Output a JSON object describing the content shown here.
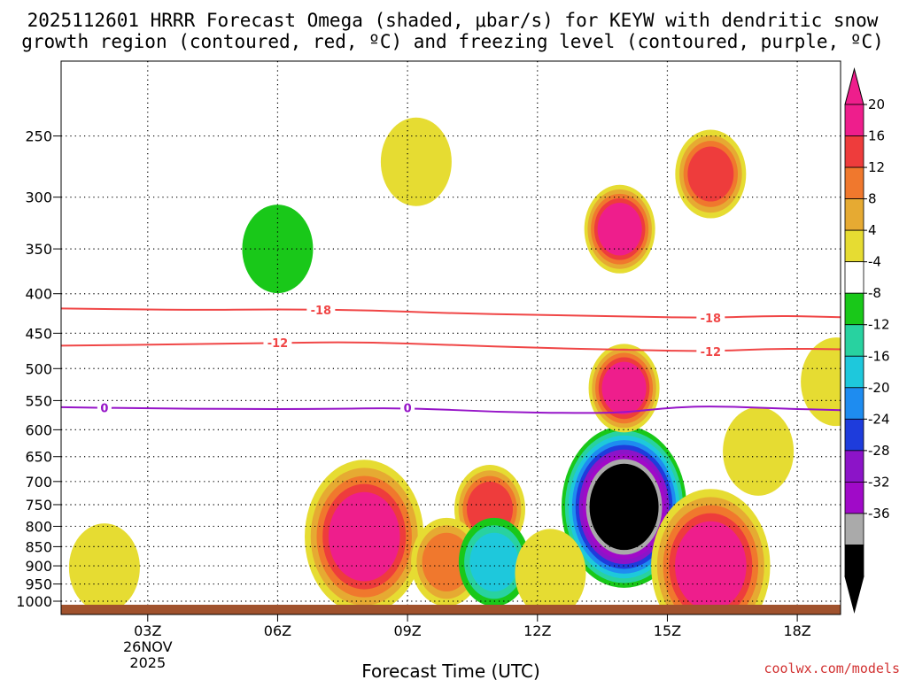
{
  "title": {
    "line1": "2025112601 HRRR Forecast Omega (shaded, μbar/s) for KEYW with dendritic snow",
    "line2": "growth region (contoured, red, ºC) and freezing level (contoured, purple, ºC)"
  },
  "credit": "coolwx.com/models",
  "chart_data": {
    "type": "heatmap",
    "title": "2025112601 HRRR Forecast Omega (shaded, μbar/s) for KEYW with dendritic snow growth region (contoured, red, ºC) and freezing level (contoured, purple, ºC)",
    "xlabel": "Forecast Time (UTC)",
    "ylabel": "",
    "x_range_hours": [
      1,
      19
    ],
    "y_range_mb": [
      200,
      1000
    ],
    "y_axis_reversed": true,
    "x_ticks": [
      {
        "hour": 3,
        "label": "03Z",
        "sub1": "26NOV",
        "sub2": "2025"
      },
      {
        "hour": 6,
        "label": "06Z"
      },
      {
        "hour": 9,
        "label": "09Z"
      },
      {
        "hour": 12,
        "label": "12Z"
      },
      {
        "hour": 15,
        "label": "15Z"
      },
      {
        "hour": 18,
        "label": "18Z"
      }
    ],
    "y_ticks": [
      250,
      300,
      350,
      400,
      450,
      500,
      550,
      600,
      650,
      700,
      750,
      800,
      850,
      900,
      950,
      1000
    ],
    "grid": true,
    "colorbar": {
      "position": "right",
      "levels": [
        {
          "label": "20",
          "color": "#ee1e8c"
        },
        {
          "label": "16",
          "color": "#ee3c3c"
        },
        {
          "label": "12",
          "color": "#f0782d"
        },
        {
          "label": "8",
          "color": "#e6aa32"
        },
        {
          "label": "4",
          "color": "#e6dc32"
        },
        {
          "label": "-4",
          "color": "#ffffff"
        },
        {
          "label": "-8",
          "color": "#19c819"
        },
        {
          "label": "-12",
          "color": "#28d2a0"
        },
        {
          "label": "-16",
          "color": "#1ec8dc"
        },
        {
          "label": "-20",
          "color": "#1e8cf0"
        },
        {
          "label": "-24",
          "color": "#1e3cdc"
        },
        {
          "label": "-28",
          "color": "#8c14c8"
        },
        {
          "label": "-32",
          "color": "#a00ac8"
        },
        {
          "label": "-36",
          "color": "#aaaaaa"
        },
        {
          "label": "",
          "color": "#000000"
        }
      ],
      "top_arrow_color": "#ee1e8c",
      "bottom_arrow_color": "#000000"
    },
    "omega_centers": [
      {
        "hour": 14.0,
        "mb": 755,
        "level": 14,
        "note": "strongest upward motion, below -36"
      },
      {
        "hour": 14.0,
        "mb": 530,
        "level": 0,
        "note": "strongest sinking, above 20"
      },
      {
        "hour": 16.0,
        "mb": 900,
        "level": 0,
        "note": "sinking, above 20"
      },
      {
        "hour": 13.9,
        "mb": 330,
        "level": 0
      },
      {
        "hour": 16.0,
        "mb": 280,
        "level": 1
      },
      {
        "hour": 8.0,
        "mb": 825,
        "level": 0
      },
      {
        "hour": 10.9,
        "mb": 760,
        "level": 1
      },
      {
        "hour": 9.9,
        "mb": 890,
        "level": 2
      },
      {
        "hour": 11.0,
        "mb": 890,
        "level": 8
      },
      {
        "hour": 6.0,
        "mb": 350,
        "level": 6
      },
      {
        "hour": 9.2,
        "mb": 270,
        "level": 4
      },
      {
        "hour": 2.0,
        "mb": 905,
        "level": 4
      },
      {
        "hour": 17.1,
        "mb": 640,
        "level": 4
      },
      {
        "hour": 12.3,
        "mb": 920,
        "level": 4
      },
      {
        "hour": 18.9,
        "mb": 520,
        "level": 4
      }
    ],
    "contours": [
      {
        "name": "-18",
        "color": "#f04646",
        "label_hours": [
          7.0,
          16.0
        ],
        "points": [
          [
            1.0,
            418
          ],
          [
            4.0,
            420
          ],
          [
            6.0,
            419
          ],
          [
            8.0,
            420
          ],
          [
            10.0,
            424
          ],
          [
            12.0,
            426
          ],
          [
            14.0,
            428
          ],
          [
            16.0,
            430
          ],
          [
            17.5,
            427
          ],
          [
            19.0,
            429
          ]
        ]
      },
      {
        "name": "-12",
        "color": "#f04646",
        "label_hours": [
          6.0,
          16.0
        ],
        "points": [
          [
            1.0,
            467
          ],
          [
            4.0,
            465
          ],
          [
            6.0,
            463
          ],
          [
            8.0,
            462
          ],
          [
            10.0,
            466
          ],
          [
            12.0,
            470
          ],
          [
            14.0,
            473
          ],
          [
            16.0,
            475
          ],
          [
            17.5,
            471
          ],
          [
            19.0,
            472
          ]
        ]
      },
      {
        "name": "0",
        "color": "#9614c8",
        "label_hours": [
          2.0,
          9.0
        ],
        "points": [
          [
            1.0,
            561
          ],
          [
            3.0,
            563
          ],
          [
            5.0,
            564
          ],
          [
            7.0,
            564
          ],
          [
            9.0,
            562
          ],
          [
            11.0,
            569
          ],
          [
            13.0,
            571
          ],
          [
            14.0,
            570
          ],
          [
            15.0,
            562
          ],
          [
            16.0,
            559
          ],
          [
            17.5,
            563
          ],
          [
            19.0,
            566
          ]
        ]
      }
    ],
    "surface_strip_color": "#a0522d"
  }
}
